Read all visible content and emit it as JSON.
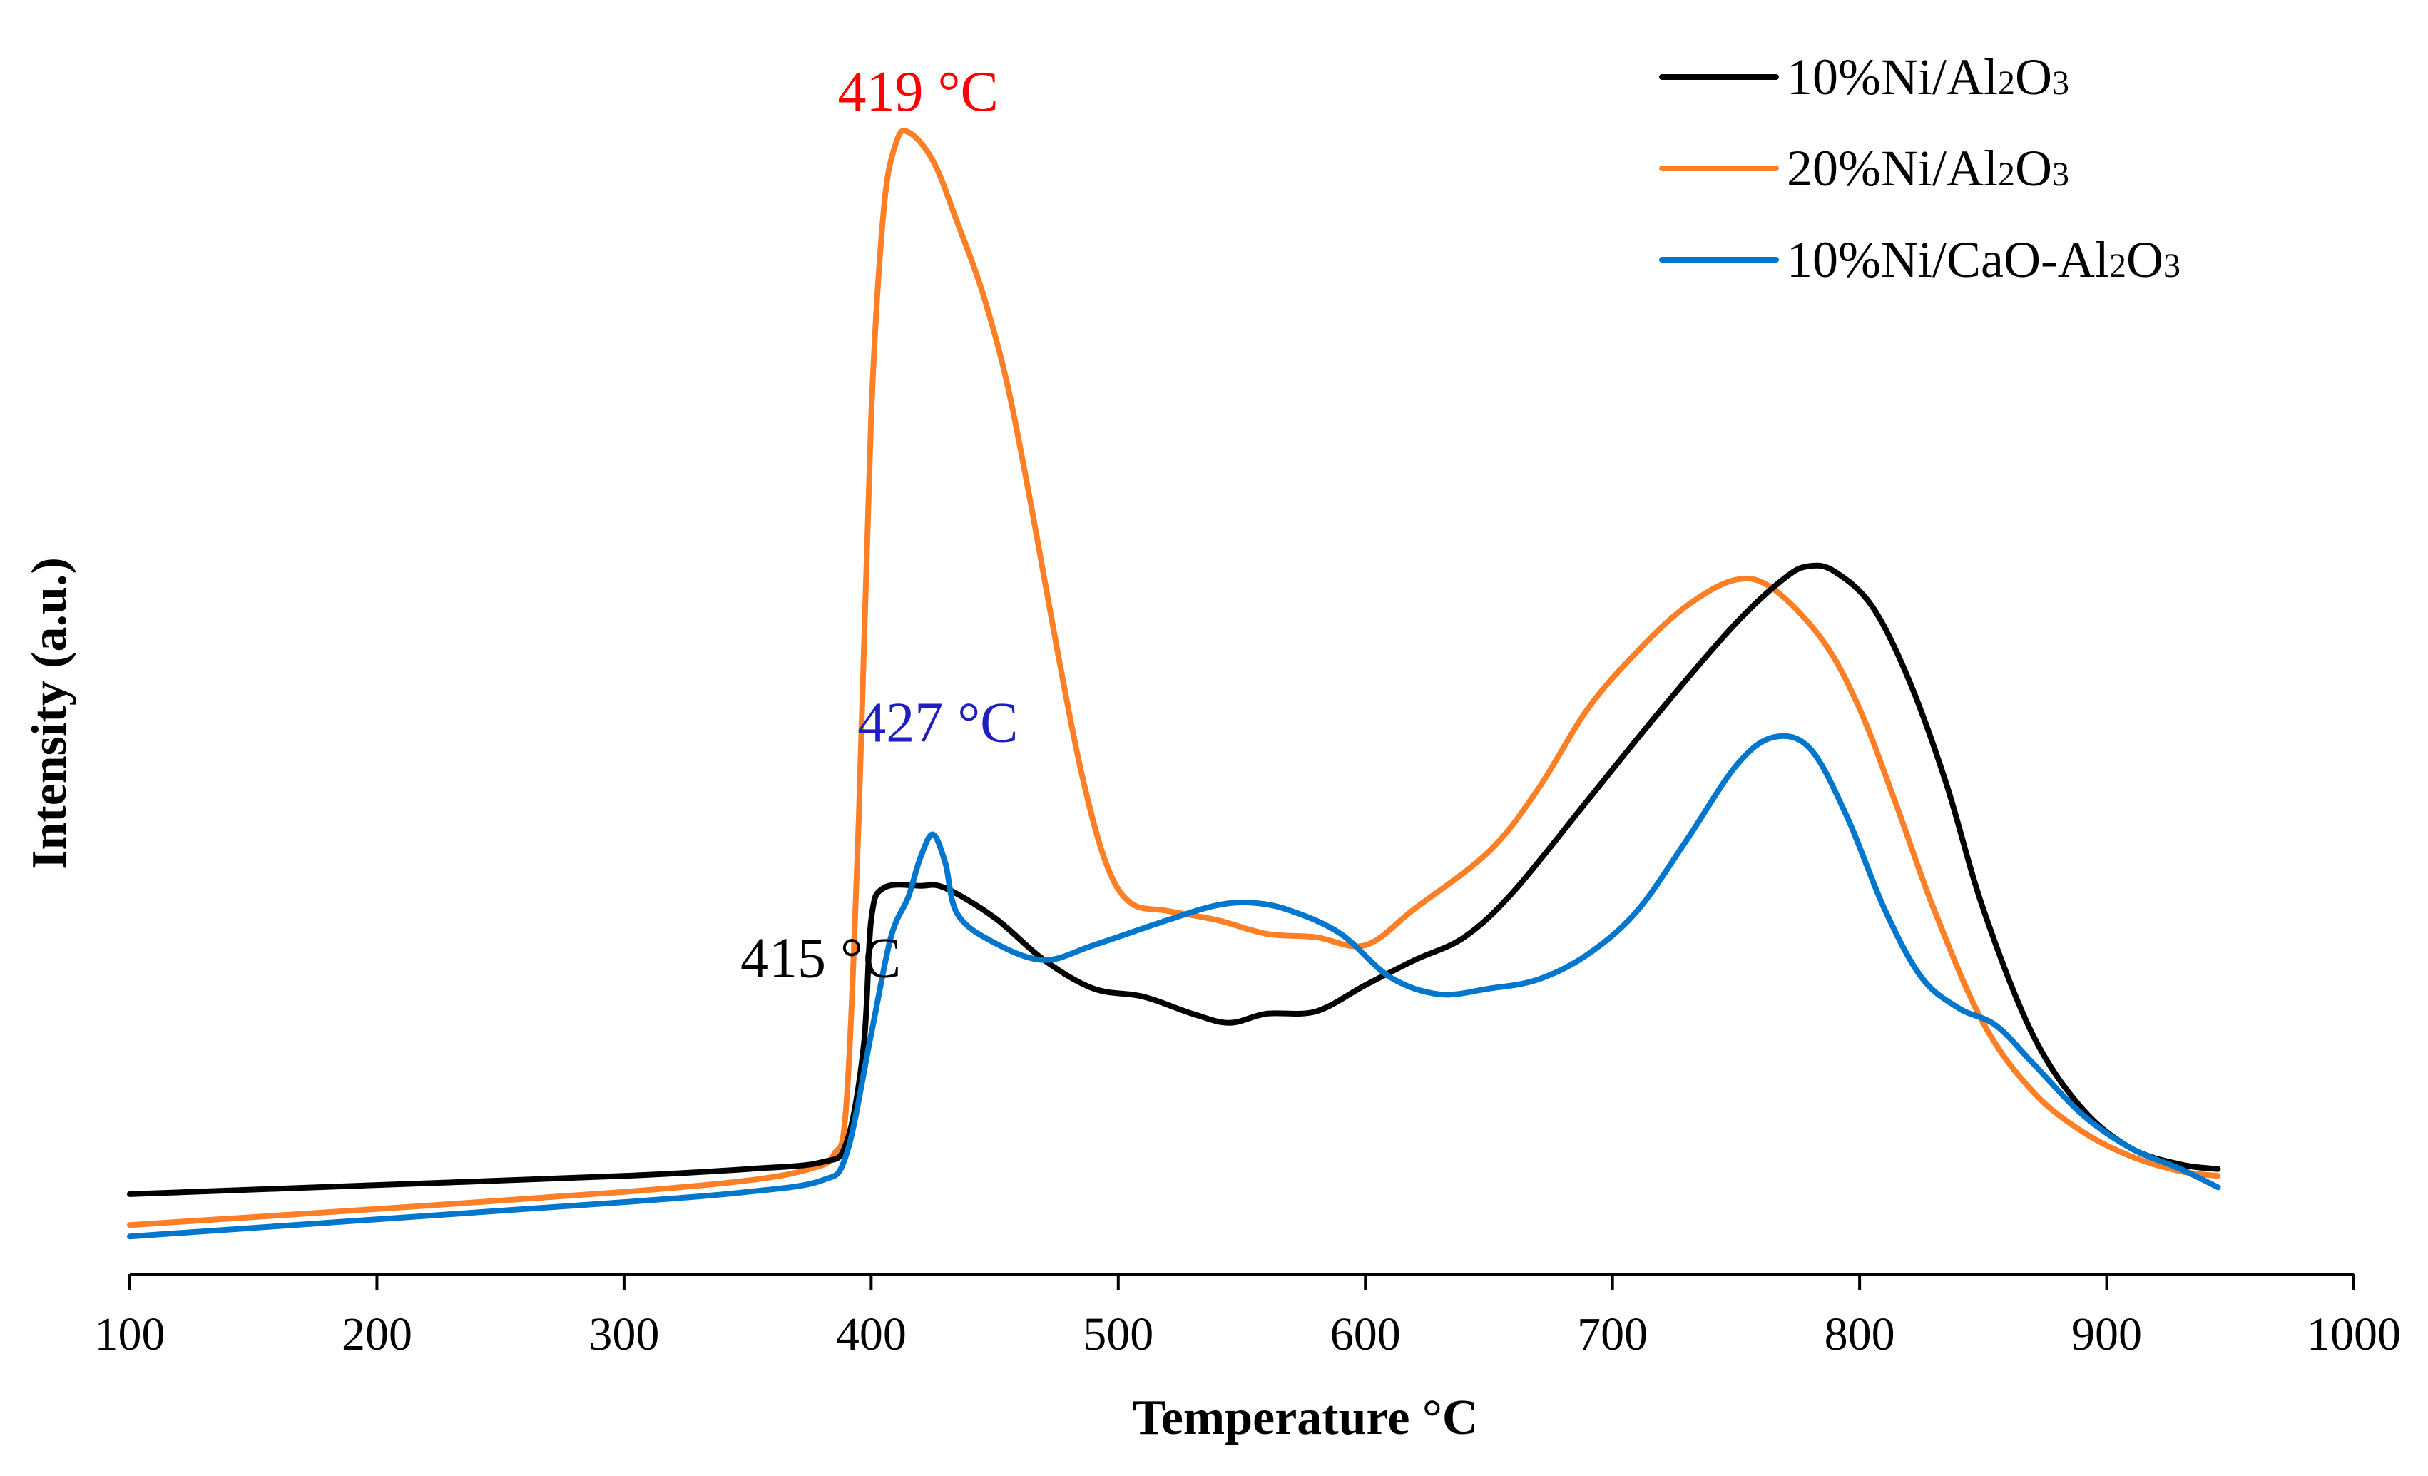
{
  "chart_data": {
    "type": "line",
    "title": "",
    "xlabel": "Temperature °C",
    "ylabel": "Intensity (a.u.)",
    "xlim": [
      100,
      1000
    ],
    "ylim": [
      0,
      100
    ],
    "xticks": [
      "100",
      "200",
      "300",
      "400",
      "500",
      "600",
      "700",
      "800",
      "900",
      "1000"
    ],
    "grid": false,
    "legend": {
      "placement": "top-right",
      "entries": [
        {
          "series": 0,
          "label": "10%Ni/Al",
          "sub1": "2",
          "mid": "O",
          "sub2": "3",
          "full": "10%Ni/Al2O3"
        },
        {
          "series": 1,
          "label": "20%Ni/Al",
          "sub1": "2",
          "mid": "O",
          "sub2": "3",
          "full": "20%Ni/Al2O3"
        },
        {
          "series": 2,
          "label": "10%Ni/CaO-Al",
          "sub1": "2",
          "mid": "O",
          "sub2": "3",
          "full": "10%Ni/CaO-Al2O3"
        }
      ]
    },
    "annotations": [
      {
        "text": "419 °C",
        "x": 419,
        "y": 100,
        "color": "#ff0000",
        "anchor": "middle"
      },
      {
        "text": "427 °C",
        "x": 427,
        "y": 43.5,
        "color": "#1f1fbf",
        "anchor": "middle"
      },
      {
        "text": "415 °C",
        "x": 415,
        "y": 28.5,
        "color": "#000000",
        "anchor": "end"
      }
    ],
    "series": [
      {
        "name": "10%Ni/Al2O3",
        "color": "#000000",
        "points": [
          [
            100,
            7.0
          ],
          [
            200,
            7.8
          ],
          [
            300,
            8.6
          ],
          [
            350,
            9.2
          ],
          [
            380,
            9.8
          ],
          [
            390,
            11.5
          ],
          [
            397,
            20
          ],
          [
            400,
            31
          ],
          [
            405,
            33.8
          ],
          [
            420,
            34.0
          ],
          [
            430,
            33.8
          ],
          [
            450,
            31.2
          ],
          [
            470,
            27.5
          ],
          [
            490,
            25.0
          ],
          [
            510,
            24.3
          ],
          [
            530,
            22.8
          ],
          [
            545,
            22.0
          ],
          [
            560,
            22.8
          ],
          [
            580,
            23.0
          ],
          [
            600,
            25.3
          ],
          [
            620,
            27.5
          ],
          [
            640,
            29.5
          ],
          [
            660,
            33.5
          ],
          [
            690,
            41.5
          ],
          [
            720,
            49.5
          ],
          [
            750,
            57.0
          ],
          [
            770,
            61.0
          ],
          [
            780,
            62.0
          ],
          [
            790,
            61.5
          ],
          [
            805,
            58.5
          ],
          [
            820,
            52.0
          ],
          [
            835,
            43.0
          ],
          [
            850,
            32.0
          ],
          [
            870,
            21.0
          ],
          [
            890,
            14.5
          ],
          [
            910,
            11.0
          ],
          [
            930,
            9.6
          ],
          [
            945,
            9.2
          ]
        ]
      },
      {
        "name": "20%Ni/Al2O3",
        "color": "#ff7f27",
        "points": [
          [
            100,
            4.3
          ],
          [
            200,
            5.7
          ],
          [
            300,
            7.2
          ],
          [
            350,
            8.2
          ],
          [
            375,
            9.2
          ],
          [
            385,
            10.5
          ],
          [
            390,
            15
          ],
          [
            395,
            40
          ],
          [
            400,
            75
          ],
          [
            405,
            93
          ],
          [
            410,
            99
          ],
          [
            415,
            100
          ],
          [
            425,
            97.5
          ],
          [
            435,
            92
          ],
          [
            445,
            86
          ],
          [
            455,
            78
          ],
          [
            465,
            67
          ],
          [
            475,
            55
          ],
          [
            485,
            44
          ],
          [
            495,
            36
          ],
          [
            505,
            32.5
          ],
          [
            520,
            31.8
          ],
          [
            540,
            31.0
          ],
          [
            560,
            29.8
          ],
          [
            580,
            29.5
          ],
          [
            600,
            28.8
          ],
          [
            620,
            32.0
          ],
          [
            650,
            37.0
          ],
          [
            670,
            42.5
          ],
          [
            690,
            49.5
          ],
          [
            710,
            54.5
          ],
          [
            730,
            58.5
          ],
          [
            750,
            60.8
          ],
          [
            765,
            60.0
          ],
          [
            785,
            55.5
          ],
          [
            800,
            49.5
          ],
          [
            815,
            41.0
          ],
          [
            830,
            32.0
          ],
          [
            850,
            22.0
          ],
          [
            870,
            16.0
          ],
          [
            890,
            12.5
          ],
          [
            910,
            10.3
          ],
          [
            930,
            9.0
          ],
          [
            945,
            8.6
          ]
        ]
      },
      {
        "name": "10%Ni/CaO-Al2O3",
        "color": "#0077cc",
        "points": [
          [
            100,
            3.3
          ],
          [
            200,
            4.8
          ],
          [
            300,
            6.3
          ],
          [
            350,
            7.2
          ],
          [
            380,
            8.2
          ],
          [
            390,
            10.5
          ],
          [
            400,
            21
          ],
          [
            408,
            29.5
          ],
          [
            415,
            33.0
          ],
          [
            420,
            36.5
          ],
          [
            425,
            38.5
          ],
          [
            430,
            36.0
          ],
          [
            435,
            31.5
          ],
          [
            450,
            29.0
          ],
          [
            470,
            27.5
          ],
          [
            490,
            28.8
          ],
          [
            520,
            31.0
          ],
          [
            540,
            32.3
          ],
          [
            555,
            32.5
          ],
          [
            570,
            31.8
          ],
          [
            590,
            29.8
          ],
          [
            610,
            26.0
          ],
          [
            630,
            24.5
          ],
          [
            650,
            25.0
          ],
          [
            670,
            25.8
          ],
          [
            690,
            28.0
          ],
          [
            710,
            31.8
          ],
          [
            730,
            38.0
          ],
          [
            750,
            44.5
          ],
          [
            765,
            47.0
          ],
          [
            780,
            46.0
          ],
          [
            795,
            40.0
          ],
          [
            810,
            32.0
          ],
          [
            825,
            26.0
          ],
          [
            840,
            23.3
          ],
          [
            855,
            21.8
          ],
          [
            870,
            18.5
          ],
          [
            890,
            14.0
          ],
          [
            910,
            11.0
          ],
          [
            930,
            9.2
          ],
          [
            945,
            7.6
          ]
        ]
      }
    ]
  }
}
